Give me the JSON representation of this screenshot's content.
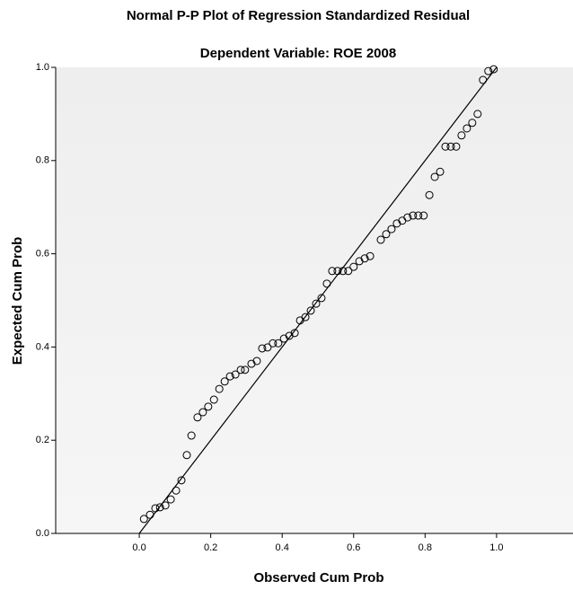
{
  "chart_data": {
    "type": "scatter",
    "title": "Normal P-P Plot of Regression Standardized Residual",
    "subtitle": "Dependent Variable: ROE 2008",
    "x_label": "Observed Cum Prob",
    "y_label": "Expected Cum Prob",
    "color": "#000000",
    "xlim": [
      -0.234,
      1.214
    ],
    "ylim": [
      0,
      1
    ],
    "xticks": [
      {
        "value": 0,
        "label": "0.0"
      },
      0.2,
      0.4,
      0.6,
      0.8,
      {
        "value": 1,
        "label": "1.0"
      }
    ],
    "yticks": [
      {
        "value": 0,
        "label": "0.0"
      },
      0.2,
      0.4,
      0.6,
      0.8,
      {
        "value": 1,
        "label": "1.0"
      }
    ],
    "x": [
      0.013,
      0.03,
      0.045,
      0.058,
      0.073,
      0.088,
      0.103,
      0.118,
      0.133,
      0.146,
      0.163,
      0.178,
      0.193,
      0.209,
      0.224,
      0.239,
      0.254,
      0.269,
      0.284,
      0.296,
      0.314,
      0.329,
      0.344,
      0.359,
      0.374,
      0.389,
      0.405,
      0.42,
      0.435,
      0.45,
      0.465,
      0.48,
      0.495,
      0.51,
      0.525,
      0.54,
      0.555,
      0.57,
      0.585,
      0.6,
      0.616,
      0.631,
      0.646,
      0.676,
      0.691,
      0.706,
      0.721,
      0.736,
      0.751,
      0.766,
      0.781,
      0.796,
      0.812,
      0.827,
      0.842,
      0.857,
      0.872,
      0.887,
      0.902,
      0.917,
      0.932,
      0.947,
      0.962,
      0.977,
      0.992
    ],
    "values": [
      0.031,
      0.04,
      0.054,
      0.056,
      0.06,
      0.073,
      0.092,
      0.114,
      0.168,
      0.21,
      0.249,
      0.26,
      0.272,
      0.287,
      0.31,
      0.326,
      0.337,
      0.341,
      0.351,
      0.351,
      0.364,
      0.37,
      0.397,
      0.399,
      0.408,
      0.408,
      0.418,
      0.424,
      0.43,
      0.457,
      0.464,
      0.478,
      0.493,
      0.505,
      0.536,
      0.563,
      0.563,
      0.563,
      0.563,
      0.572,
      0.584,
      0.59,
      0.595,
      0.63,
      0.642,
      0.653,
      0.665,
      0.671,
      0.678,
      0.682,
      0.682,
      0.682,
      0.726,
      0.765,
      0.776,
      0.83,
      0.83,
      0.83,
      0.854,
      0.869,
      0.881,
      0.9,
      0.973,
      0.992,
      0.996
    ]
  }
}
